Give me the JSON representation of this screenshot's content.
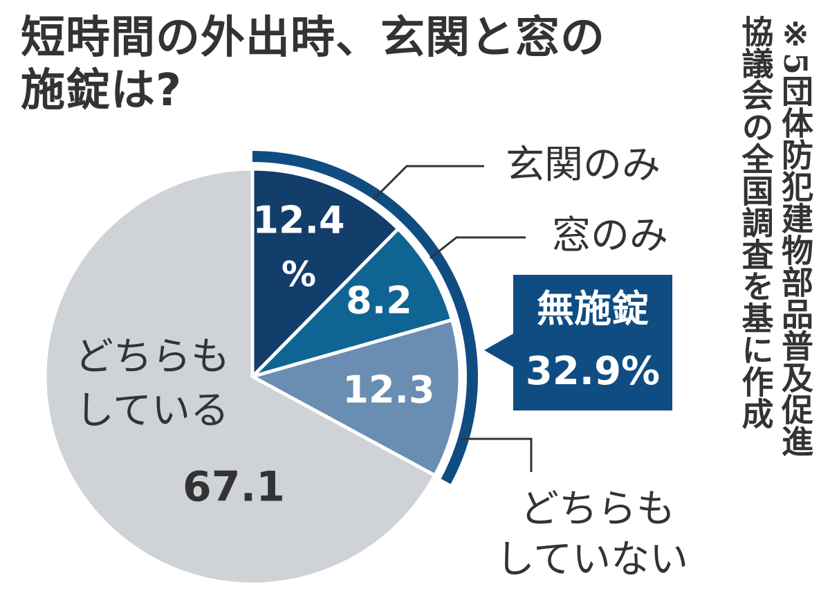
{
  "title": {
    "line1": "短時間の外出時、玄関と窓の",
    "line2": "施錠は?"
  },
  "note": {
    "line1": "※5団体防犯建物部品普及促進",
    "line2": "協議会の全国調査を基に作成"
  },
  "colors": {
    "genkan_only": "#133d6b",
    "mado_only": "#0f6494",
    "doch_shitenai": "#6a8db2",
    "dochira_shiteiru": "#cfd3d7",
    "bracket": "#0f4c82",
    "text": "#333333"
  },
  "chart_data": {
    "type": "pie",
    "title": "短時間の外出時、玄関と窓の施錠は?",
    "slices": [
      {
        "name": "玄関のみ",
        "value": 12.4,
        "label": "12.4",
        "unit": "%"
      },
      {
        "name": "窓のみ",
        "value": 8.2,
        "label": "8.2"
      },
      {
        "name": "どちらもしていない",
        "name_lines": [
          "どちらも",
          "していない"
        ],
        "value": 12.3,
        "label": "12.3"
      },
      {
        "name": "どちらもしている",
        "name_lines": [
          "どちらも",
          "している"
        ],
        "value": 67.1,
        "label": "67.1"
      }
    ],
    "callout": {
      "label": "無施錠",
      "value_text": "32.9%",
      "value": 32.9
    }
  }
}
